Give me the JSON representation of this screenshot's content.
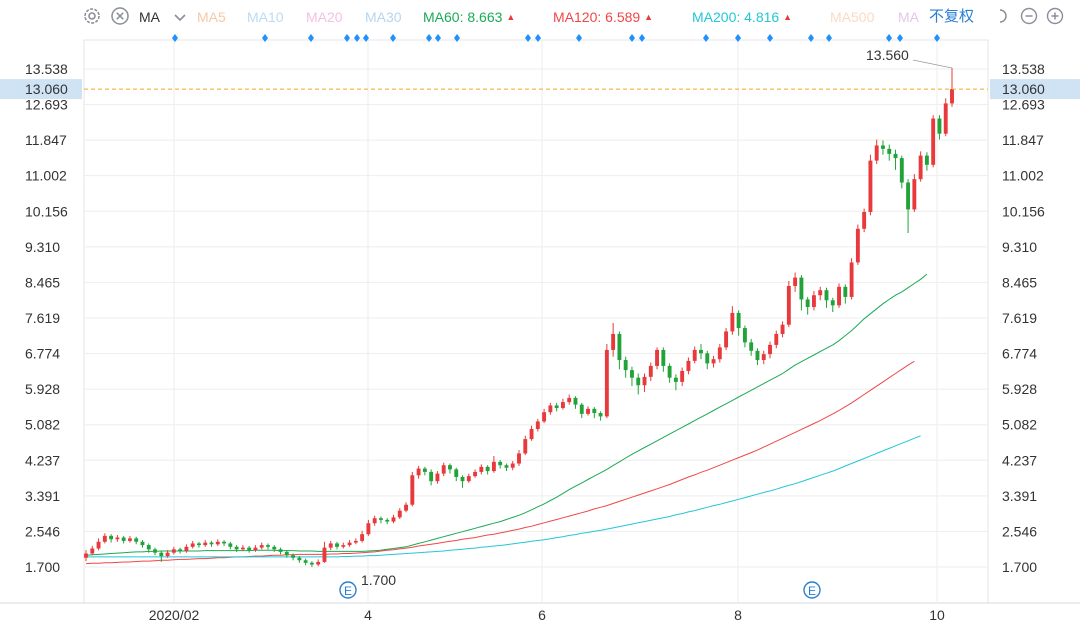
{
  "toolbar": {
    "indicator_label": "MA",
    "restore_label": "不复权",
    "ma_items": [
      {
        "label": "MA5",
        "value": "",
        "color": "#f5c9a6",
        "active": false,
        "trend": ""
      },
      {
        "label": "MA10",
        "value": "",
        "color": "#b9dcf2",
        "active": false,
        "trend": ""
      },
      {
        "label": "MA20",
        "value": "",
        "color": "#f4c0e4",
        "active": false,
        "trend": ""
      },
      {
        "label": "MA30",
        "value": "",
        "color": "#b5d6f0",
        "active": false,
        "trend": ""
      },
      {
        "label": "MA60",
        "value": "8.663",
        "color": "#1aaa55",
        "active": true,
        "trend": "▲"
      },
      {
        "label": "MA120",
        "value": "6.589",
        "color": "#f04848",
        "active": true,
        "trend": "▲"
      },
      {
        "label": "MA200",
        "value": "4.816",
        "color": "#22c7d8",
        "active": true,
        "trend": "▲"
      },
      {
        "label": "MA500",
        "value": "",
        "color": "#f8dcc0",
        "active": false,
        "trend": ""
      },
      {
        "label": "MA",
        "value": "",
        "color": "#e6c6ec",
        "active": false,
        "trend": ""
      }
    ]
  },
  "colors": {
    "up": "#e8393c",
    "down": "#21a33a",
    "ma60": "#1aaa55",
    "ma120": "#f04848",
    "ma200": "#22c7d8",
    "grid": "#eeeeee",
    "price_line": "#f5a623",
    "price_tag_bg": "#cfe3f5",
    "marker_dot": "#1e90ff"
  },
  "chart_data": {
    "type": "candlestick",
    "title": "",
    "xlabel": "",
    "ylabel": "",
    "ylim": [
      1.1,
      14.2
    ],
    "y_ticks": [
      "13.538",
      "12.693",
      "11.847",
      "11.002",
      "10.156",
      "9.310",
      "8.465",
      "7.619",
      "6.774",
      "5.928",
      "5.082",
      "4.237",
      "3.391",
      "2.546",
      "1.700"
    ],
    "x_ticks": [
      "2020/02",
      "4",
      "6",
      "8",
      "10"
    ],
    "current_price": "13.060",
    "high_label": "13.560",
    "low_label": "1.700",
    "event_marker_label": "E",
    "event_markers_at": [
      "2020-03-27",
      "2020-08-28"
    ],
    "candles": [
      [
        1.92,
        2.02,
        2.1,
        1.84
      ],
      [
        2.02,
        2.14,
        2.2,
        1.98
      ],
      [
        2.14,
        2.3,
        2.38,
        2.1
      ],
      [
        2.3,
        2.44,
        2.5,
        2.26
      ],
      [
        2.44,
        2.36,
        2.48,
        2.28
      ],
      [
        2.36,
        2.4,
        2.46,
        2.3
      ],
      [
        2.4,
        2.32,
        2.44,
        2.26
      ],
      [
        2.32,
        2.38,
        2.44,
        2.28
      ],
      [
        2.38,
        2.3,
        2.42,
        2.24
      ],
      [
        2.3,
        2.22,
        2.34,
        2.16
      ],
      [
        2.22,
        2.12,
        2.26,
        2.04
      ],
      [
        2.12,
        2.04,
        2.16,
        1.98
      ],
      [
        2.04,
        1.96,
        2.08,
        1.82
      ],
      [
        1.96,
        2.04,
        2.1,
        1.92
      ],
      [
        2.04,
        2.12,
        2.18,
        2.0
      ],
      [
        2.12,
        2.08,
        2.16,
        2.02
      ],
      [
        2.08,
        2.18,
        2.24,
        2.04
      ],
      [
        2.18,
        2.26,
        2.32,
        2.14
      ],
      [
        2.26,
        2.22,
        2.3,
        2.16
      ],
      [
        2.22,
        2.28,
        2.34,
        2.18
      ],
      [
        2.28,
        2.24,
        2.32,
        2.18
      ],
      [
        2.24,
        2.3,
        2.36,
        2.2
      ],
      [
        2.3,
        2.26,
        2.34,
        2.2
      ],
      [
        2.26,
        2.18,
        2.3,
        2.12
      ],
      [
        2.18,
        2.12,
        2.22,
        2.06
      ],
      [
        2.12,
        2.16,
        2.22,
        2.08
      ],
      [
        2.16,
        2.1,
        2.2,
        2.04
      ],
      [
        2.1,
        2.16,
        2.22,
        2.06
      ],
      [
        2.16,
        2.22,
        2.28,
        2.12
      ],
      [
        2.22,
        2.18,
        2.26,
        2.12
      ],
      [
        2.18,
        2.12,
        2.22,
        2.06
      ],
      [
        2.12,
        2.06,
        2.16,
        2.0
      ],
      [
        2.06,
        1.98,
        2.1,
        1.92
      ],
      [
        1.98,
        1.92,
        2.02,
        1.86
      ],
      [
        1.92,
        1.86,
        1.96,
        1.8
      ],
      [
        1.86,
        1.8,
        1.9,
        1.74
      ],
      [
        1.8,
        1.76,
        1.84,
        1.7
      ],
      [
        1.76,
        1.82,
        1.88,
        1.72
      ],
      [
        1.82,
        2.16,
        2.3,
        1.8
      ],
      [
        2.16,
        2.26,
        2.32,
        2.1
      ],
      [
        2.26,
        2.18,
        2.3,
        2.12
      ],
      [
        2.18,
        2.22,
        2.28,
        2.14
      ],
      [
        2.22,
        2.28,
        2.34,
        2.18
      ],
      [
        2.28,
        2.32,
        2.38,
        2.24
      ],
      [
        2.32,
        2.48,
        2.56,
        2.28
      ],
      [
        2.48,
        2.74,
        2.82,
        2.44
      ],
      [
        2.74,
        2.86,
        2.92,
        2.68
      ],
      [
        2.86,
        2.82,
        2.9,
        2.74
      ],
      [
        2.82,
        2.78,
        2.86,
        2.72
      ],
      [
        2.78,
        2.88,
        2.94,
        2.74
      ],
      [
        2.88,
        3.04,
        3.1,
        2.84
      ],
      [
        3.04,
        3.18,
        3.24,
        3.0
      ],
      [
        3.18,
        3.88,
        3.96,
        3.14
      ],
      [
        3.88,
        4.04,
        4.1,
        3.8
      ],
      [
        4.04,
        3.96,
        4.08,
        3.88
      ],
      [
        3.96,
        3.74,
        4.02,
        3.64
      ],
      [
        3.74,
        3.92,
        3.98,
        3.68
      ],
      [
        3.92,
        4.12,
        4.18,
        3.86
      ],
      [
        4.12,
        4.02,
        4.16,
        3.92
      ],
      [
        4.02,
        3.84,
        4.06,
        3.74
      ],
      [
        3.84,
        3.74,
        3.88,
        3.58
      ],
      [
        3.74,
        3.86,
        3.92,
        3.7
      ],
      [
        3.86,
        3.96,
        4.02,
        3.82
      ],
      [
        3.96,
        4.08,
        4.14,
        3.9
      ],
      [
        4.08,
        3.98,
        4.12,
        3.9
      ],
      [
        3.98,
        4.2,
        4.34,
        3.94
      ],
      [
        4.2,
        4.12,
        4.24,
        4.04
      ],
      [
        4.12,
        4.06,
        4.16,
        3.98
      ],
      [
        4.06,
        4.16,
        4.22,
        4.0
      ],
      [
        4.16,
        4.4,
        4.48,
        4.1
      ],
      [
        4.4,
        4.74,
        4.82,
        4.36
      ],
      [
        4.74,
        4.98,
        5.06,
        4.7
      ],
      [
        4.98,
        5.16,
        5.22,
        4.92
      ],
      [
        5.16,
        5.38,
        5.46,
        5.12
      ],
      [
        5.38,
        5.54,
        5.6,
        5.32
      ],
      [
        5.54,
        5.48,
        5.6,
        5.4
      ],
      [
        5.48,
        5.62,
        5.7,
        5.44
      ],
      [
        5.62,
        5.72,
        5.8,
        5.56
      ],
      [
        5.72,
        5.56,
        5.76,
        5.46
      ],
      [
        5.56,
        5.34,
        5.6,
        5.24
      ],
      [
        5.34,
        5.46,
        5.52,
        5.3
      ],
      [
        5.46,
        5.36,
        5.5,
        5.24
      ],
      [
        5.36,
        5.28,
        5.4,
        5.18
      ],
      [
        5.28,
        6.86,
        7.0,
        5.24
      ],
      [
        6.86,
        7.24,
        7.5,
        6.7
      ],
      [
        7.24,
        6.62,
        7.3,
        6.4
      ],
      [
        6.62,
        6.38,
        6.7,
        6.2
      ],
      [
        6.38,
        6.2,
        6.46,
        6.0
      ],
      [
        6.2,
        6.02,
        6.3,
        5.8
      ],
      [
        6.02,
        6.22,
        6.3,
        5.86
      ],
      [
        6.22,
        6.48,
        6.56,
        6.12
      ],
      [
        6.48,
        6.86,
        6.92,
        6.4
      ],
      [
        6.86,
        6.48,
        6.92,
        6.34
      ],
      [
        6.48,
        6.2,
        6.54,
        6.08
      ],
      [
        6.2,
        6.1,
        6.28,
        5.9
      ],
      [
        6.1,
        6.36,
        6.44,
        6.0
      ],
      [
        6.36,
        6.6,
        6.68,
        6.28
      ],
      [
        6.6,
        6.86,
        6.94,
        6.54
      ],
      [
        6.86,
        6.78,
        7.0,
        6.64
      ],
      [
        6.78,
        6.54,
        6.84,
        6.4
      ],
      [
        6.54,
        6.64,
        6.72,
        6.44
      ],
      [
        6.64,
        6.92,
        7.0,
        6.56
      ],
      [
        6.92,
        7.3,
        7.38,
        6.86
      ],
      [
        7.3,
        7.74,
        7.9,
        7.22
      ],
      [
        7.74,
        7.38,
        7.8,
        7.2
      ],
      [
        7.38,
        7.04,
        7.44,
        6.92
      ],
      [
        7.04,
        6.84,
        7.12,
        6.72
      ],
      [
        6.84,
        6.62,
        6.9,
        6.5
      ],
      [
        6.62,
        6.76,
        6.84,
        6.52
      ],
      [
        6.76,
        6.98,
        7.06,
        6.66
      ],
      [
        6.98,
        7.24,
        7.32,
        6.9
      ],
      [
        7.24,
        7.46,
        7.54,
        7.16
      ],
      [
        7.46,
        8.38,
        8.5,
        7.4
      ],
      [
        8.38,
        8.58,
        8.7,
        8.24
      ],
      [
        8.58,
        8.06,
        8.64,
        7.8
      ],
      [
        8.06,
        7.88,
        8.12,
        7.7
      ],
      [
        7.88,
        8.16,
        8.26,
        7.8
      ],
      [
        8.16,
        8.28,
        8.36,
        8.04
      ],
      [
        8.28,
        8.04,
        8.34,
        7.86
      ],
      [
        8.04,
        7.92,
        8.1,
        7.76
      ],
      [
        7.92,
        8.36,
        8.44,
        7.86
      ],
      [
        8.36,
        8.12,
        8.42,
        7.96
      ],
      [
        8.12,
        8.94,
        9.04,
        8.06
      ],
      [
        8.94,
        9.74,
        9.84,
        8.88
      ],
      [
        9.74,
        10.14,
        10.22,
        9.66
      ],
      [
        10.14,
        11.36,
        11.5,
        10.06
      ],
      [
        11.36,
        11.72,
        11.86,
        11.28
      ],
      [
        11.72,
        11.64,
        11.84,
        11.5
      ],
      [
        11.64,
        11.52,
        11.74,
        11.36
      ],
      [
        11.52,
        11.42,
        11.62,
        11.14
      ],
      [
        11.42,
        10.84,
        11.48,
        10.7
      ],
      [
        10.84,
        10.2,
        10.92,
        9.64
      ],
      [
        10.2,
        10.92,
        11.04,
        10.14
      ],
      [
        10.92,
        11.48,
        11.58,
        10.86
      ],
      [
        11.48,
        11.26,
        11.56,
        11.12
      ],
      [
        11.26,
        12.36,
        12.44,
        11.2
      ],
      [
        12.36,
        12.0,
        12.44,
        11.86
      ],
      [
        12.0,
        12.72,
        12.84,
        11.94
      ],
      [
        12.72,
        13.06,
        13.56,
        12.64
      ]
    ],
    "series": [
      {
        "name": "MA60",
        "color": "#1aaa55",
        "values": [
          1.98,
          1.99,
          2.0,
          2.01,
          2.02,
          2.03,
          2.04,
          2.05,
          2.06,
          2.06,
          2.07,
          2.07,
          2.08,
          2.08,
          2.08,
          2.08,
          2.08,
          2.08,
          2.08,
          2.09,
          2.09,
          2.09,
          2.09,
          2.09,
          2.09,
          2.09,
          2.09,
          2.1,
          2.1,
          2.1,
          2.1,
          2.09,
          2.09,
          2.09,
          2.08,
          2.08,
          2.08,
          2.07,
          2.07,
          2.07,
          2.07,
          2.07,
          2.07,
          2.07,
          2.07,
          2.08,
          2.09,
          2.1,
          2.12,
          2.14,
          2.16,
          2.18,
          2.22,
          2.26,
          2.3,
          2.34,
          2.38,
          2.42,
          2.46,
          2.5,
          2.54,
          2.58,
          2.62,
          2.66,
          2.7,
          2.74,
          2.78,
          2.83,
          2.88,
          2.93,
          2.99,
          3.06,
          3.13,
          3.2,
          3.28,
          3.36,
          3.45,
          3.54,
          3.62,
          3.7,
          3.78,
          3.86,
          3.94,
          4.02,
          4.11,
          4.2,
          4.29,
          4.38,
          4.46,
          4.54,
          4.62,
          4.7,
          4.78,
          4.86,
          4.94,
          5.02,
          5.1,
          5.18,
          5.26,
          5.34,
          5.42,
          5.5,
          5.58,
          5.66,
          5.74,
          5.82,
          5.9,
          5.98,
          6.06,
          6.14,
          6.22,
          6.3,
          6.4,
          6.5,
          6.58,
          6.66,
          6.74,
          6.82,
          6.9,
          6.98,
          7.08,
          7.2,
          7.32,
          7.46,
          7.6,
          7.72,
          7.84,
          7.96,
          8.06,
          8.16,
          8.24,
          8.34,
          8.44,
          8.54,
          8.663
        ]
      },
      {
        "name": "MA120",
        "color": "#f04848",
        "values": [
          1.78,
          1.79,
          1.79,
          1.8,
          1.8,
          1.81,
          1.82,
          1.82,
          1.83,
          1.84,
          1.84,
          1.85,
          1.86,
          1.86,
          1.87,
          1.88,
          1.88,
          1.89,
          1.9,
          1.9,
          1.91,
          1.92,
          1.92,
          1.93,
          1.94,
          1.94,
          1.95,
          1.96,
          1.96,
          1.97,
          1.98,
          1.98,
          1.99,
          1.99,
          2.0,
          2.0,
          2.0,
          2.0,
          2.0,
          2.01,
          2.01,
          2.02,
          2.02,
          2.03,
          2.04,
          2.05,
          2.06,
          2.08,
          2.1,
          2.11,
          2.13,
          2.15,
          2.17,
          2.2,
          2.22,
          2.24,
          2.26,
          2.29,
          2.31,
          2.33,
          2.36,
          2.38,
          2.4,
          2.43,
          2.46,
          2.48,
          2.51,
          2.54,
          2.57,
          2.6,
          2.64,
          2.67,
          2.71,
          2.75,
          2.79,
          2.83,
          2.87,
          2.91,
          2.95,
          2.99,
          3.03,
          3.08,
          3.12,
          3.16,
          3.21,
          3.26,
          3.31,
          3.36,
          3.41,
          3.46,
          3.51,
          3.56,
          3.61,
          3.66,
          3.72,
          3.78,
          3.84,
          3.89,
          3.95,
          4.0,
          4.06,
          4.12,
          4.18,
          4.24,
          4.3,
          4.36,
          4.42,
          4.48,
          4.55,
          4.62,
          4.69,
          4.76,
          4.83,
          4.9,
          4.97,
          5.04,
          5.11,
          5.18,
          5.26,
          5.34,
          5.42,
          5.51,
          5.6,
          5.7,
          5.8,
          5.9,
          6.0,
          6.1,
          6.2,
          6.3,
          6.4,
          6.5,
          6.589
        ]
      },
      {
        "name": "MA200",
        "color": "#22c7d8",
        "values": [
          1.94,
          1.94,
          1.94,
          1.94,
          1.94,
          1.94,
          1.94,
          1.94,
          1.94,
          1.94,
          1.94,
          1.94,
          1.94,
          1.94,
          1.94,
          1.94,
          1.94,
          1.94,
          1.94,
          1.94,
          1.94,
          1.94,
          1.94,
          1.94,
          1.94,
          1.94,
          1.94,
          1.94,
          1.94,
          1.94,
          1.94,
          1.94,
          1.94,
          1.94,
          1.94,
          1.94,
          1.94,
          1.94,
          1.94,
          1.94,
          1.94,
          1.95,
          1.95,
          1.96,
          1.96,
          1.97,
          1.97,
          1.98,
          1.99,
          2.0,
          2.01,
          2.02,
          2.03,
          2.04,
          2.05,
          2.06,
          2.07,
          2.08,
          2.1,
          2.11,
          2.12,
          2.14,
          2.15,
          2.17,
          2.18,
          2.2,
          2.21,
          2.23,
          2.25,
          2.27,
          2.29,
          2.31,
          2.33,
          2.35,
          2.37,
          2.4,
          2.42,
          2.45,
          2.47,
          2.5,
          2.52,
          2.55,
          2.57,
          2.6,
          2.63,
          2.66,
          2.69,
          2.72,
          2.75,
          2.78,
          2.81,
          2.84,
          2.87,
          2.9,
          2.94,
          2.97,
          3.01,
          3.04,
          3.08,
          3.12,
          3.16,
          3.19,
          3.23,
          3.27,
          3.31,
          3.35,
          3.39,
          3.43,
          3.47,
          3.51,
          3.55,
          3.6,
          3.64,
          3.68,
          3.73,
          3.78,
          3.83,
          3.88,
          3.93,
          3.98,
          4.04,
          4.1,
          4.16,
          4.22,
          4.28,
          4.34,
          4.4,
          4.46,
          4.52,
          4.58,
          4.64,
          4.7,
          4.76,
          4.816
        ]
      }
    ]
  }
}
